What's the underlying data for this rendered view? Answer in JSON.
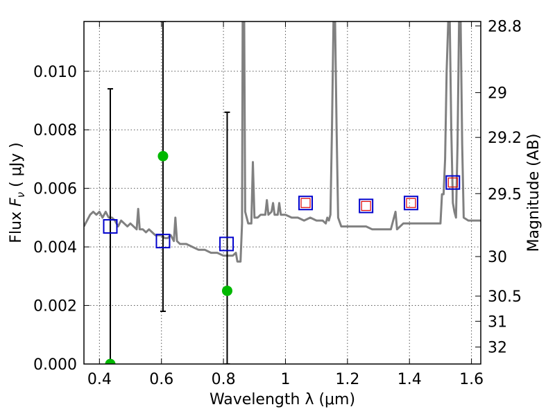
{
  "chart_data": {
    "type": "scatter",
    "xlabel": "Wavelength  λ (μm)",
    "ylabel": "Flux  F_ν  ( μJy )",
    "ylabel_parts": {
      "prefix": "Flux  ",
      "F": "F",
      "nu": "ν",
      "unit": "  ( μJy )"
    },
    "y2label": "Magnitude (AB)",
    "xlim": [
      0.35,
      1.63
    ],
    "ylim": [
      0.0,
      0.0117
    ],
    "grid": true,
    "x_ticks": [
      0.4,
      0.6,
      0.8,
      1.0,
      1.2,
      1.4,
      1.6
    ],
    "x_tick_labels": [
      "0.4",
      "0.6",
      "0.8",
      "1",
      "1.2",
      "1.4",
      "1.6"
    ],
    "y_ticks": [
      0.0,
      0.002,
      0.004,
      0.006,
      0.008,
      0.01
    ],
    "y_tick_labels": [
      "0.000",
      "0.002",
      "0.004",
      "0.006",
      "0.008",
      "0.010"
    ],
    "y2_ticks": [
      {
        "label": "28.8",
        "flux": 0.01155
      },
      {
        "label": "29",
        "flux": 0.00927
      },
      {
        "label": "29.2",
        "flux": 0.00774
      },
      {
        "label": "29.5",
        "flux": 0.00582
      },
      {
        "label": "30",
        "flux": 0.00367
      },
      {
        "label": "30.5",
        "flux": 0.00232
      },
      {
        "label": "31",
        "flux": 0.00146
      },
      {
        "label": "32",
        "flux": 0.00058
      }
    ],
    "series": [
      {
        "kind": "line",
        "color": "#808080",
        "points": [
          [
            0.35,
            0.0047
          ],
          [
            0.37,
            0.0051
          ],
          [
            0.38,
            0.0052
          ],
          [
            0.39,
            0.0051
          ],
          [
            0.4,
            0.0052
          ],
          [
            0.41,
            0.005
          ],
          [
            0.42,
            0.0052
          ],
          [
            0.43,
            0.005
          ],
          [
            0.44,
            0.005
          ],
          [
            0.45,
            0.0049
          ],
          [
            0.46,
            0.0047
          ],
          [
            0.47,
            0.0049
          ],
          [
            0.48,
            0.0048
          ],
          [
            0.49,
            0.0047
          ],
          [
            0.5,
            0.0048
          ],
          [
            0.51,
            0.0047
          ],
          [
            0.52,
            0.0046
          ],
          [
            0.525,
            0.0053
          ],
          [
            0.53,
            0.0046
          ],
          [
            0.54,
            0.0046
          ],
          [
            0.55,
            0.0045
          ],
          [
            0.56,
            0.0046
          ],
          [
            0.57,
            0.0045
          ],
          [
            0.58,
            0.0044
          ],
          [
            0.59,
            0.0044
          ],
          [
            0.6,
            0.0044
          ],
          [
            0.61,
            0.0043
          ],
          [
            0.62,
            0.0043
          ],
          [
            0.63,
            0.0044
          ],
          [
            0.64,
            0.0042
          ],
          [
            0.645,
            0.005
          ],
          [
            0.65,
            0.0042
          ],
          [
            0.66,
            0.0041
          ],
          [
            0.68,
            0.0041
          ],
          [
            0.7,
            0.004
          ],
          [
            0.72,
            0.0039
          ],
          [
            0.74,
            0.0039
          ],
          [
            0.76,
            0.0038
          ],
          [
            0.78,
            0.0038
          ],
          [
            0.8,
            0.0037
          ],
          [
            0.82,
            0.0037
          ],
          [
            0.83,
            0.0037
          ],
          [
            0.84,
            0.0038
          ],
          [
            0.845,
            0.0035
          ],
          [
            0.855,
            0.0035
          ],
          [
            0.86,
            0.0048
          ],
          [
            0.862,
            0.0117
          ],
          [
            0.867,
            0.0117
          ],
          [
            0.87,
            0.0052
          ],
          [
            0.88,
            0.0048
          ],
          [
            0.89,
            0.0048
          ],
          [
            0.895,
            0.0069
          ],
          [
            0.9,
            0.005
          ],
          [
            0.91,
            0.005
          ],
          [
            0.92,
            0.0051
          ],
          [
            0.935,
            0.0051
          ],
          [
            0.94,
            0.0056
          ],
          [
            0.945,
            0.0051
          ],
          [
            0.955,
            0.0052
          ],
          [
            0.96,
            0.0055
          ],
          [
            0.965,
            0.0051
          ],
          [
            0.975,
            0.0051
          ],
          [
            0.98,
            0.0055
          ],
          [
            0.985,
            0.0051
          ],
          [
            1.0,
            0.0051
          ],
          [
            1.02,
            0.005
          ],
          [
            1.04,
            0.005
          ],
          [
            1.06,
            0.0049
          ],
          [
            1.08,
            0.005
          ],
          [
            1.1,
            0.0049
          ],
          [
            1.12,
            0.0049
          ],
          [
            1.13,
            0.0048
          ],
          [
            1.135,
            0.005
          ],
          [
            1.14,
            0.0049
          ],
          [
            1.145,
            0.0051
          ],
          [
            1.15,
            0.008
          ],
          [
            1.155,
            0.0117
          ],
          [
            1.16,
            0.0117
          ],
          [
            1.165,
            0.008
          ],
          [
            1.17,
            0.005
          ],
          [
            1.18,
            0.0047
          ],
          [
            1.2,
            0.0047
          ],
          [
            1.22,
            0.0047
          ],
          [
            1.24,
            0.0047
          ],
          [
            1.26,
            0.0047
          ],
          [
            1.28,
            0.0046
          ],
          [
            1.3,
            0.0046
          ],
          [
            1.32,
            0.0046
          ],
          [
            1.34,
            0.0046
          ],
          [
            1.355,
            0.0052
          ],
          [
            1.36,
            0.0046
          ],
          [
            1.38,
            0.0048
          ],
          [
            1.4,
            0.0048
          ],
          [
            1.42,
            0.0048
          ],
          [
            1.44,
            0.0048
          ],
          [
            1.46,
            0.0048
          ],
          [
            1.48,
            0.0048
          ],
          [
            1.5,
            0.0048
          ],
          [
            1.505,
            0.0058
          ],
          [
            1.51,
            0.0058
          ],
          [
            1.515,
            0.007
          ],
          [
            1.52,
            0.01
          ],
          [
            1.525,
            0.0117
          ],
          [
            1.53,
            0.0117
          ],
          [
            1.535,
            0.008
          ],
          [
            1.54,
            0.0055
          ],
          [
            1.545,
            0.0052
          ],
          [
            1.55,
            0.005
          ],
          [
            1.555,
            0.0075
          ],
          [
            1.56,
            0.0117
          ],
          [
            1.565,
            0.0117
          ],
          [
            1.57,
            0.0075
          ],
          [
            1.575,
            0.005
          ],
          [
            1.59,
            0.0049
          ],
          [
            1.61,
            0.0049
          ],
          [
            1.63,
            0.0049
          ]
        ]
      },
      {
        "kind": "errorbar",
        "color": "#000000",
        "points": [
          {
            "x": 0.435,
            "y": 0.0,
            "ylo": 0.0,
            "yhi": 0.0094
          },
          {
            "x": 0.605,
            "y": 0.0071,
            "ylo": 0.0018,
            "yhi": 0.0117
          },
          {
            "x": 0.812,
            "y": 0.0025,
            "ylo": 0.0,
            "yhi": 0.0086
          }
        ]
      },
      {
        "kind": "scatter",
        "marker": "circle",
        "color": "#00b800",
        "points": [
          [
            0.435,
            0.0
          ],
          [
            0.605,
            0.0071
          ],
          [
            0.812,
            0.0025
          ]
        ]
      },
      {
        "kind": "scatter",
        "marker": "square-open",
        "color": "#0000cc",
        "points": [
          [
            0.435,
            0.0047
          ],
          [
            0.605,
            0.0042
          ],
          [
            0.81,
            0.0041
          ],
          [
            1.065,
            0.0055
          ],
          [
            1.26,
            0.0054
          ],
          [
            1.405,
            0.0055
          ],
          [
            1.54,
            0.0062
          ]
        ]
      },
      {
        "kind": "scatter",
        "marker": "square-open-small",
        "color": "#dd0000",
        "points": [
          [
            1.065,
            0.0055
          ],
          [
            1.26,
            0.0054
          ],
          [
            1.405,
            0.0055
          ],
          [
            1.54,
            0.0062
          ]
        ]
      }
    ]
  }
}
